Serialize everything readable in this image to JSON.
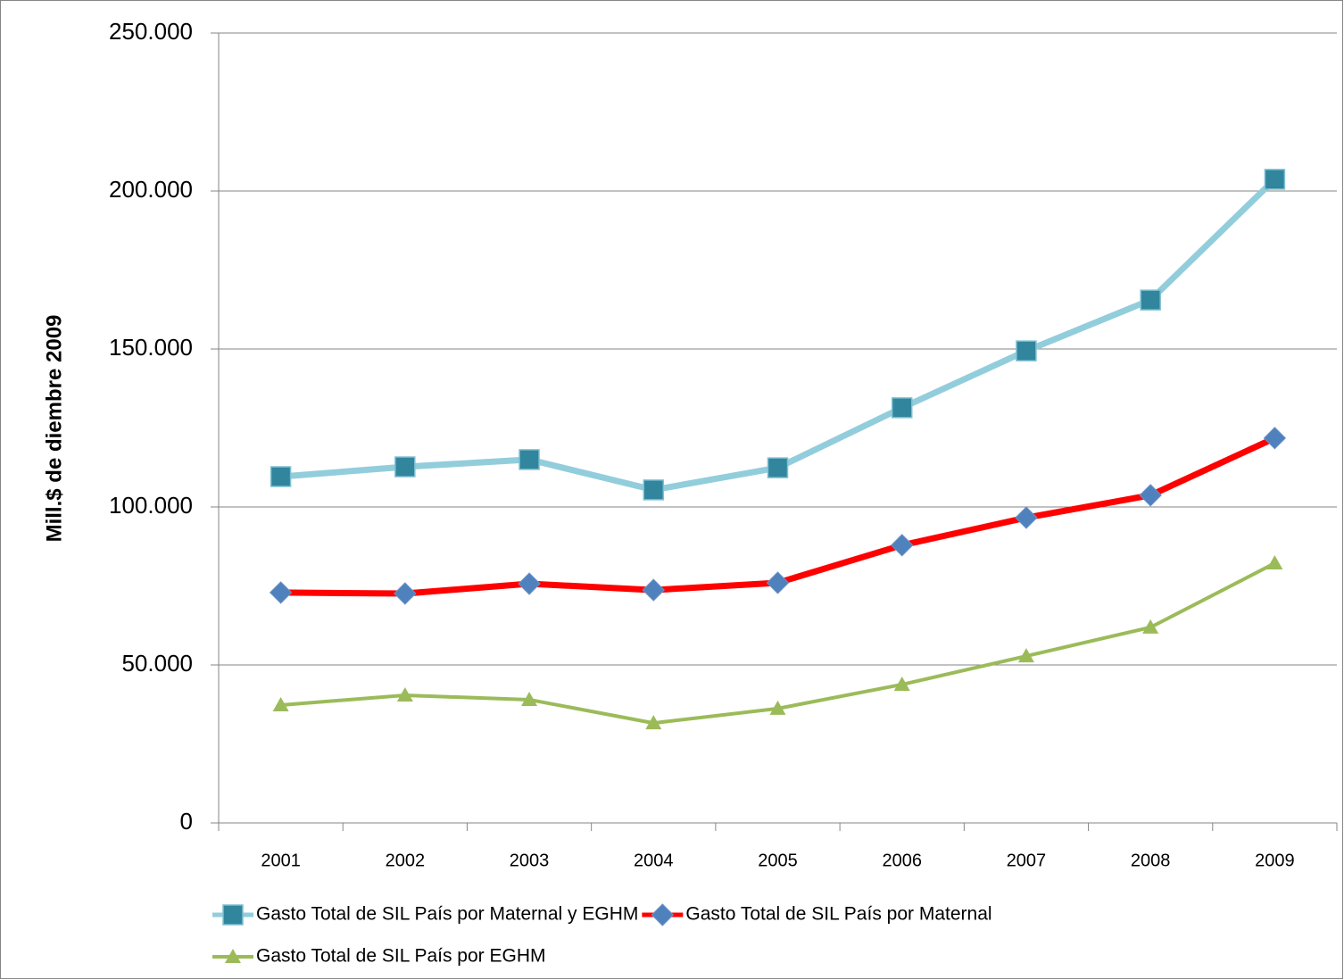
{
  "chart_data": {
    "type": "line",
    "y_label": "Mill.$ de diembre 2009",
    "categories": [
      "2001",
      "2002",
      "2003",
      "2004",
      "2005",
      "2006",
      "2007",
      "2008",
      "2009"
    ],
    "series": [
      {
        "name": "Gasto Total de SIL País por Maternal y EGHM",
        "color": "#92cddc",
        "marker_color": "#31859c",
        "marker": "square",
        "line_width": 7,
        "values": [
          109600,
          112700,
          115000,
          105400,
          112400,
          131400,
          149400,
          165500,
          203700
        ]
      },
      {
        "name": "Gasto Total de SIL País por Maternal",
        "color": "#ff0000",
        "marker_color": "#4f81bd",
        "marker": "diamond",
        "line_width": 7,
        "values": [
          72900,
          72600,
          75700,
          73700,
          76000,
          87900,
          96600,
          103700,
          121800
        ]
      },
      {
        "name": "Gasto Total de SIL País por EGHM",
        "color": "#9bbb59",
        "marker_color": "#9bbb59",
        "marker": "triangle",
        "line_width": 4,
        "values": [
          37300,
          40400,
          39000,
          31600,
          36200,
          43800,
          52800,
          61900,
          82200
        ]
      }
    ],
    "ylim": [
      0,
      250000
    ],
    "yticks": [
      0,
      {
        "value": 50000,
        "label": "50.000"
      },
      {
        "value": 100000,
        "label": "100.000"
      },
      {
        "value": 150000,
        "label": "150.000"
      },
      {
        "value": 200000,
        "label": "200.000"
      },
      {
        "value": 250000,
        "label": "250.000"
      }
    ],
    "grid": true
  }
}
